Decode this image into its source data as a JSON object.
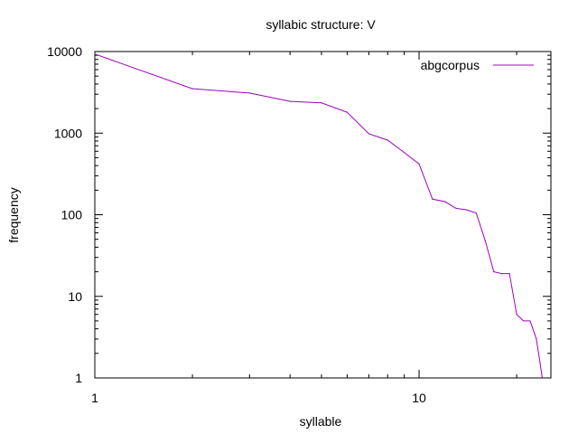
{
  "chart_data": {
    "type": "line",
    "title": "syllabic structure: V",
    "xlabel": "syllable",
    "ylabel": "frequency",
    "xscale": "log",
    "yscale": "log",
    "xlim": [
      1,
      25.5
    ],
    "ylim": [
      1,
      10000
    ],
    "xticks": [
      {
        "value": 1,
        "label": "1"
      },
      {
        "value": 10,
        "label": "10"
      }
    ],
    "yticks": [
      {
        "value": 1,
        "label": "1"
      },
      {
        "value": 10,
        "label": "10"
      },
      {
        "value": 100,
        "label": "100"
      },
      {
        "value": 1000,
        "label": "1000"
      },
      {
        "value": 10000,
        "label": "10000"
      }
    ],
    "grid": false,
    "legend": "top-right",
    "series": [
      {
        "name": "abgcorpus",
        "color": "#a000c0",
        "x": [
          1,
          2,
          3,
          4,
          5,
          6,
          7,
          8,
          9,
          10,
          11,
          12,
          13,
          14,
          15,
          16,
          17,
          18,
          19,
          20,
          21,
          22,
          23
        ],
        "y": [
          9300,
          3500,
          3100,
          2450,
          2350,
          1800,
          980,
          820,
          580,
          420,
          155,
          145,
          120,
          115,
          105,
          48,
          20,
          19,
          19,
          6,
          5,
          5,
          3
        ]
      }
    ],
    "tail": {
      "x": 24,
      "y": 1
    }
  }
}
